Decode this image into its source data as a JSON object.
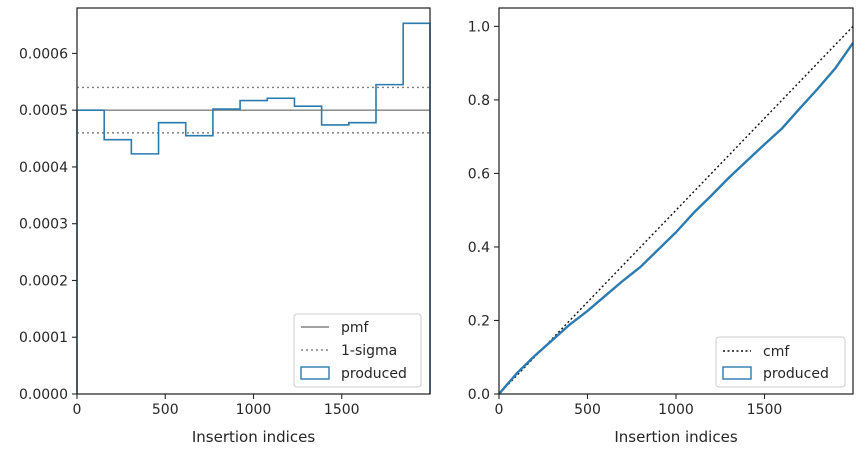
{
  "colors": {
    "produced": "#2b7bb0",
    "pmf": "#808080",
    "sigma": "#808080",
    "cmf": "#111111",
    "axes": "#262626",
    "legend_border": "#cccccc"
  },
  "chart_data": [
    {
      "type": "step-histogram",
      "xlabel": "Insertion indices",
      "ylabel": "",
      "xlim": [
        0,
        2000
      ],
      "ylim": [
        0,
        0.00068
      ],
      "xticks": [
        0,
        500,
        1000,
        1500
      ],
      "yticks": [
        0,
        0.0001,
        0.0002,
        0.0003,
        0.0004,
        0.0005,
        0.0006
      ],
      "ytick_labels": [
        "0.0000",
        "0.0001",
        "0.0002",
        "0.0003",
        "0.0004",
        "0.0005",
        "0.0006"
      ],
      "grid": false,
      "legend_position": "bottom-right",
      "legend": [
        "pmf",
        "1-sigma",
        "produced"
      ],
      "pmf": 0.0005,
      "sigma_band": [
        0.00046,
        0.00054
      ],
      "bin_edges": [
        0,
        154,
        308,
        462,
        616,
        770,
        924,
        1078,
        1232,
        1386,
        1540,
        1694,
        1848,
        2000
      ],
      "produced": [
        0.0005,
        0.000448,
        0.000423,
        0.000478,
        0.000455,
        0.000502,
        0.000517,
        0.000521,
        0.000507,
        0.000474,
        0.000478,
        0.000545,
        0.000653
      ]
    },
    {
      "type": "line",
      "xlabel": "Insertion indices",
      "ylabel": "",
      "xlim": [
        0,
        2000
      ],
      "ylim": [
        0,
        1.05
      ],
      "xticks": [
        0,
        500,
        1000,
        1500
      ],
      "yticks": [
        0,
        0.2,
        0.4,
        0.6,
        0.8,
        1.0
      ],
      "ytick_labels": [
        "0.0",
        "0.2",
        "0.4",
        "0.6",
        "0.8",
        "1.0"
      ],
      "grid": false,
      "legend_position": "bottom-right",
      "legend": [
        "cmf",
        "produced"
      ],
      "cmf": {
        "x": [
          0,
          2000
        ],
        "y": [
          0,
          1
        ]
      },
      "produced": {
        "x": [
          0,
          50,
          100,
          200,
          300,
          400,
          500,
          600,
          700,
          800,
          900,
          1000,
          1100,
          1200,
          1300,
          1400,
          1500,
          1600,
          1700,
          1800,
          1900,
          2000
        ],
        "y": [
          0,
          0.028,
          0.056,
          0.103,
          0.146,
          0.189,
          0.226,
          0.267,
          0.308,
          0.346,
          0.393,
          0.44,
          0.493,
          0.54,
          0.589,
          0.634,
          0.679,
          0.723,
          0.777,
          0.83,
          0.886,
          0.955
        ]
      }
    }
  ]
}
